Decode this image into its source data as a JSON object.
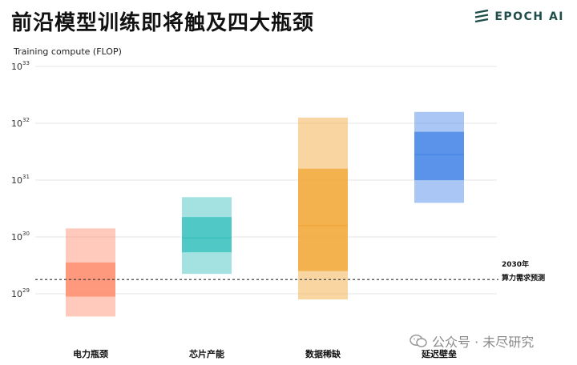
{
  "header": {
    "title": "前沿模型训练即将触及四大瓶颈",
    "brand": "EPOCH AI"
  },
  "watermark": {
    "text": "公众号 · 未尽研究"
  },
  "chart_data": {
    "type": "range",
    "ylabel": "Training compute (FLOP)",
    "yscale": "log10",
    "ylim_exp": [
      28.7,
      33
    ],
    "yticks": [
      {
        "base": "10",
        "exp": "29"
      },
      {
        "base": "10",
        "exp": "30"
      },
      {
        "base": "10",
        "exp": "31"
      },
      {
        "base": "10",
        "exp": "32"
      },
      {
        "base": "10",
        "exp": "33"
      }
    ],
    "reference_line": {
      "value_exp": 29.25,
      "label_line1": "2030年",
      "label_line2": "算力需求预测"
    },
    "categories": [
      {
        "label": "电力瓶颈",
        "color": "#ff8f70",
        "outer": [
          28.6,
          30.15
        ],
        "inner": [
          28.95,
          29.55
        ],
        "median": 29.25
      },
      {
        "label": "芯片产能",
        "color": "#3ec2c0",
        "outer": [
          29.35,
          30.7
        ],
        "inner": [
          29.73,
          30.35
        ],
        "median": 29.98
      },
      {
        "label": "数据稀缺",
        "color": "#f2a93b",
        "outer": [
          28.9,
          32.1
        ],
        "inner": [
          29.4,
          31.2
        ],
        "median": 30.2
      },
      {
        "label": "延迟壁垒",
        "color": "#4b88e8",
        "outer": [
          30.6,
          32.2
        ],
        "inner": [
          31.0,
          31.85
        ],
        "median": 31.45
      }
    ]
  }
}
